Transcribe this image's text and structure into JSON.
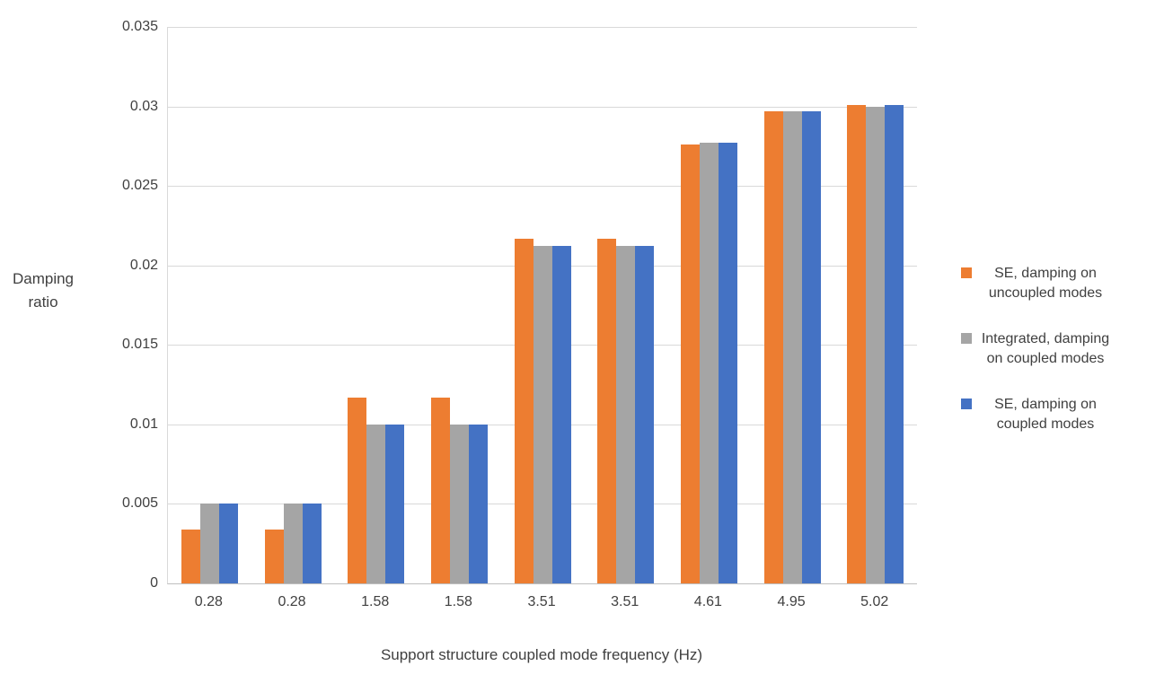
{
  "chart_data": {
    "type": "bar",
    "title": "",
    "categories": [
      "0.28",
      "0.28",
      "1.58",
      "1.58",
      "3.51",
      "3.51",
      "4.61",
      "4.95",
      "5.02"
    ],
    "series": [
      {
        "name": "SE, damping on uncoupled modes",
        "color": "#ED7D31",
        "values": [
          0.0034,
          0.0034,
          0.0117,
          0.0117,
          0.0217,
          0.0217,
          0.0276,
          0.0297,
          0.0301
        ]
      },
      {
        "name": "Integrated, damping on coupled modes",
        "color": "#A5A5A5",
        "values": [
          0.005,
          0.005,
          0.01,
          0.01,
          0.0212,
          0.0212,
          0.0277,
          0.0297,
          0.03
        ]
      },
      {
        "name": "SE, damping on coupled modes",
        "color": "#4472C4",
        "values": [
          0.005,
          0.005,
          0.01,
          0.01,
          0.0212,
          0.0212,
          0.0277,
          0.0297,
          0.0301
        ]
      }
    ],
    "xlabel": "Support structure coupled mode frequency (Hz)",
    "ylabel": "Damping ratio",
    "ylabel_lines": [
      "Damping",
      "ratio"
    ],
    "ylim": [
      0,
      0.035
    ],
    "ytick_values": [
      0,
      0.005,
      0.01,
      0.015,
      0.02,
      0.025,
      0.03,
      0.035
    ],
    "ytick_labels": [
      "0",
      "0.005",
      "0.01",
      "0.015",
      "0.02",
      "0.025",
      "0.03",
      "0.035"
    ],
    "grid": true,
    "legend_position": "right"
  }
}
